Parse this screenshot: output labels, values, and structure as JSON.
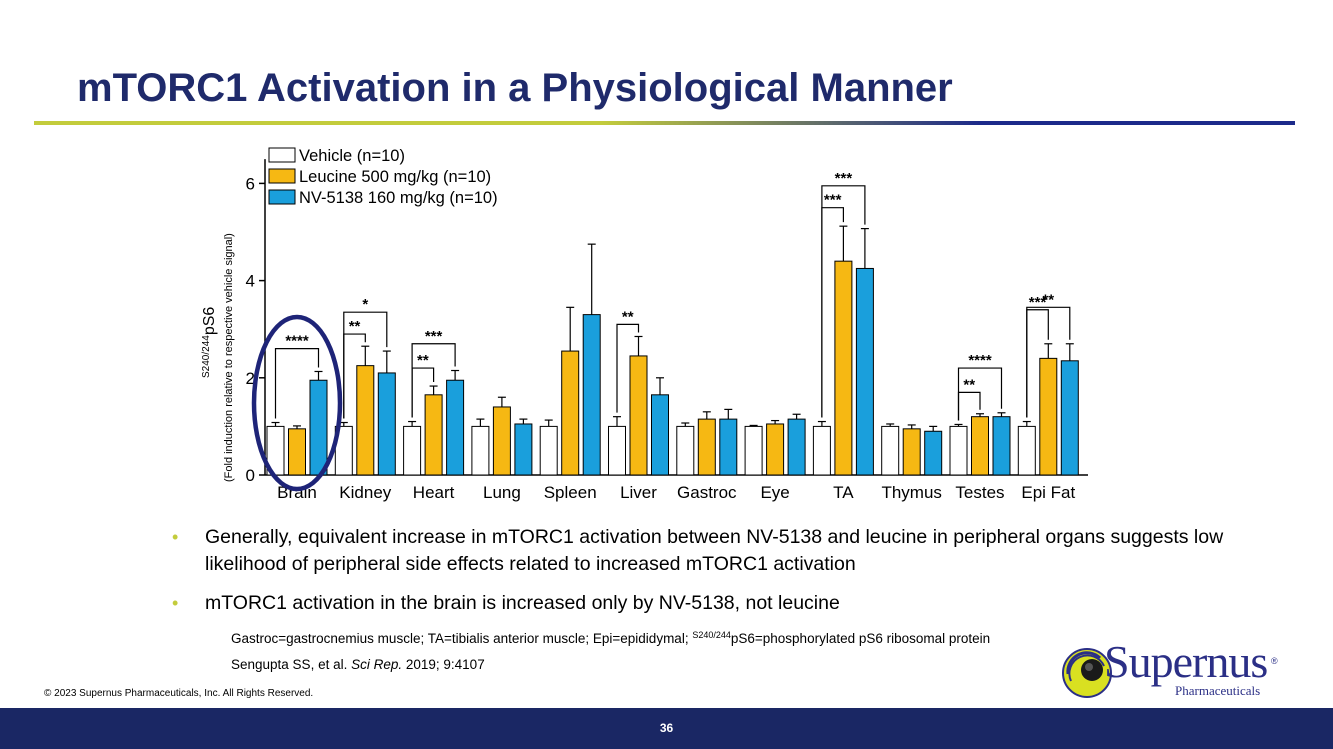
{
  "slide": {
    "title": "mTORC1 Activation in a Physiological Manner",
    "bullets": [
      "Generally, equivalent increase in mTORC1 activation between NV-5138 and leucine in peripheral organs suggests low likelihood of peripheral side effects related to increased mTORC1 activation",
      "mTORC1 activation in the brain is increased only by NV-5138, not leucine"
    ],
    "bullet_glyph": "•",
    "note1_pre": "Gastroc=gastrocnemius muscle; TA=tibialis anterior muscle; Epi=epididymal; ",
    "note1_sup": "S240/244",
    "note1_post": "pS6=phosphorylated pS6 ribosomal protein",
    "ref_authors": "Sengupta SS, et al. ",
    "ref_journal": "Sci Rep.",
    "ref_rest": " 2019; 9:4107",
    "copyright": "© 2023 Supernus Pharmaceuticals, Inc. All Rights Reserved.",
    "page_number": "36",
    "logo_word": "Supernus",
    "logo_reg": "®",
    "logo_sub": "Pharmaceuticals"
  },
  "colors": {
    "title": "#1f2a6b",
    "vehicle": "#ffffff",
    "leucine": "#f6b813",
    "nv5138": "#1a9fdc",
    "circle": "#1e2478",
    "footer": "#1a2764",
    "accent": "#c3cc3c"
  },
  "chart_data": {
    "type": "bar",
    "ylabel_sup": "S240/244",
    "ylabel_main": "pS6",
    "ylabel_sub": "(Fold induction relative to respective vehicle signal)",
    "ylim": [
      0,
      6.5
    ],
    "yticks": [
      0,
      2,
      4,
      6
    ],
    "categories": [
      "Brain",
      "Kidney",
      "Heart",
      "Lung",
      "Spleen",
      "Liver",
      "Gastroc",
      "Eye",
      "TA",
      "Thymus",
      "Testes",
      "Epi Fat"
    ],
    "series": [
      {
        "name": "Vehicle (n=10)",
        "color": "#ffffff",
        "values": [
          1.0,
          1.0,
          1.0,
          1.0,
          1.0,
          1.0,
          1.0,
          1.0,
          1.0,
          1.0,
          1.0,
          1.0
        ],
        "errors": [
          0.08,
          0.08,
          0.1,
          0.15,
          0.13,
          0.2,
          0.07,
          0.02,
          0.1,
          0.05,
          0.04,
          0.1
        ]
      },
      {
        "name": "Leucine 500 mg/kg (n=10)",
        "color": "#f6b813",
        "values": [
          0.95,
          2.25,
          1.65,
          1.4,
          2.55,
          2.45,
          1.15,
          1.05,
          4.4,
          0.95,
          1.2,
          2.4
        ],
        "errors": [
          0.06,
          0.4,
          0.18,
          0.2,
          0.9,
          0.4,
          0.15,
          0.07,
          0.72,
          0.08,
          0.06,
          0.3
        ]
      },
      {
        "name": "NV-5138 160 mg/kg (n=10)",
        "color": "#1a9fdc",
        "values": [
          1.95,
          2.1,
          1.95,
          1.05,
          3.3,
          1.65,
          1.15,
          1.15,
          4.25,
          0.9,
          1.2,
          2.35
        ],
        "errors": [
          0.18,
          0.45,
          0.2,
          0.1,
          1.45,
          0.35,
          0.2,
          0.1,
          0.82,
          0.1,
          0.08,
          0.35
        ]
      }
    ],
    "significance": [
      {
        "category": "Brain",
        "label": "****",
        "from": 0,
        "to": 2,
        "y": 2.6
      },
      {
        "category": "Kidney",
        "label": "**",
        "from": 0,
        "to": 1,
        "y": 2.9
      },
      {
        "category": "Kidney",
        "label": "*",
        "from": 0,
        "to": 2,
        "y": 3.35
      },
      {
        "category": "Heart",
        "label": "**",
        "from": 0,
        "to": 1,
        "y": 2.2
      },
      {
        "category": "Heart",
        "label": "***",
        "from": 0,
        "to": 2,
        "y": 2.7
      },
      {
        "category": "Liver",
        "label": "**",
        "from": 0,
        "to": 1,
        "y": 3.1
      },
      {
        "category": "TA",
        "label": "***",
        "from": 0,
        "to": 1,
        "y": 5.5
      },
      {
        "category": "TA",
        "label": "***",
        "from": 0,
        "to": 2,
        "y": 5.95
      },
      {
        "category": "Testes",
        "label": "**",
        "from": 0,
        "to": 1,
        "y": 1.7
      },
      {
        "category": "Testes",
        "label": "****",
        "from": 0,
        "to": 2,
        "y": 2.2
      },
      {
        "category": "Epi Fat",
        "label": "***",
        "from": 0,
        "to": 1,
        "y": 3.4
      },
      {
        "category": "Epi Fat",
        "label": "**",
        "from": 0,
        "to": 2,
        "y": 3.45
      }
    ],
    "highlight": "Brain"
  }
}
